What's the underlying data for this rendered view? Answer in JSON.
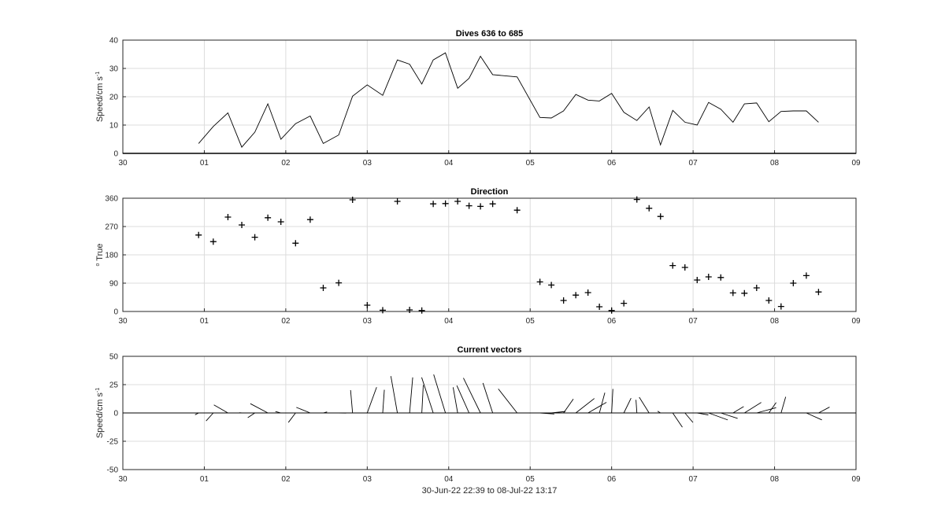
{
  "chart_data": [
    {
      "type": "line",
      "title": "Dives 636 to 685",
      "ylabel_main": "Speed/cm s",
      "ylabel_sup": "-1",
      "xlim": [
        0,
        9
      ],
      "ylim": [
        0,
        40
      ],
      "xticks": [
        0,
        1,
        2,
        3,
        4,
        5,
        6,
        7,
        8,
        9
      ],
      "xticklabels": [
        "30",
        "01",
        "02",
        "03",
        "04",
        "05",
        "06",
        "07",
        "08",
        "09"
      ],
      "yticks": [
        0,
        10,
        20,
        30,
        40
      ],
      "yticklabels": [
        "0",
        "10",
        "20",
        "30",
        "40"
      ],
      "grid": true,
      "x": [
        0.93,
        1.11,
        1.29,
        1.46,
        1.62,
        1.78,
        1.94,
        2.12,
        2.3,
        2.46,
        2.65,
        2.82,
        3.0,
        3.19,
        3.37,
        3.52,
        3.67,
        3.81,
        3.96,
        4.11,
        4.25,
        4.39,
        4.54,
        4.84,
        5.12,
        5.26,
        5.41,
        5.56,
        5.71,
        5.85,
        6.0,
        6.15,
        6.31,
        6.46,
        6.6,
        6.75,
        6.9,
        7.05,
        7.19,
        7.34,
        7.49,
        7.63,
        7.78,
        7.93,
        8.08,
        8.23,
        8.39,
        8.54
      ],
      "y": [
        3.5,
        9.5,
        14.3,
        2.2,
        7.5,
        17.5,
        5.0,
        10.5,
        13.2,
        3.5,
        6.5,
        20.2,
        24.2,
        20.5,
        33.0,
        31.5,
        24.5,
        33.0,
        35.5,
        23.0,
        26.5,
        34.3,
        27.8,
        27.0,
        12.7,
        12.5,
        15.0,
        20.8,
        18.8,
        18.5,
        21.2,
        14.5,
        11.6,
        16.4,
        3.0,
        15.2,
        11.0,
        10.0,
        18.0,
        15.6,
        11.0,
        17.5,
        17.8,
        11.2,
        14.8,
        15.0,
        15.0,
        11.0
      ]
    },
    {
      "type": "scatter",
      "title": "Direction",
      "ylabel_main": " True",
      "ylabel_sup": "o",
      "xlim": [
        0,
        9
      ],
      "ylim": [
        0,
        360
      ],
      "xticks": [
        0,
        1,
        2,
        3,
        4,
        5,
        6,
        7,
        8,
        9
      ],
      "xticklabels": [
        "30",
        "01",
        "02",
        "03",
        "04",
        "05",
        "06",
        "07",
        "08",
        "09"
      ],
      "yticks": [
        0,
        90,
        180,
        270,
        360
      ],
      "yticklabels": [
        "0",
        "90",
        "180",
        "270",
        "360"
      ],
      "grid": true,
      "marker": "+",
      "x": [
        0.93,
        1.11,
        1.29,
        1.46,
        1.62,
        1.78,
        1.94,
        2.12,
        2.3,
        2.46,
        2.65,
        2.82,
        3.0,
        3.19,
        3.37,
        3.52,
        3.67,
        3.81,
        3.96,
        4.11,
        4.25,
        4.39,
        4.54,
        4.84,
        5.12,
        5.26,
        5.41,
        5.56,
        5.71,
        5.85,
        6.0,
        6.15,
        6.31,
        6.46,
        6.6,
        6.75,
        6.9,
        7.05,
        7.19,
        7.34,
        7.49,
        7.63,
        7.78,
        7.93,
        8.08,
        8.23,
        8.39,
        8.54
      ],
      "y": [
        243,
        222,
        300,
        275,
        236,
        298,
        285,
        217,
        292,
        75,
        91,
        355,
        20,
        4,
        350,
        5,
        3,
        342,
        343,
        350,
        336,
        334,
        342,
        322,
        94,
        84,
        35,
        52,
        60,
        15,
        3,
        26,
        356,
        328,
        302,
        146,
        140,
        100,
        110,
        108,
        59,
        58,
        75,
        35,
        16,
        90,
        114,
        62
      ]
    },
    {
      "type": "quiver",
      "title": "Current vectors",
      "ylabel_main": "Speed/cm s",
      "ylabel_sup": "-1",
      "xlabel": "30-Jun-22 22:39 to 08-Jul-22 13:17",
      "xlim": [
        0,
        9
      ],
      "ylim": [
        -50,
        50
      ],
      "xticks": [
        0,
        1,
        2,
        3,
        4,
        5,
        6,
        7,
        8,
        9
      ],
      "xticklabels": [
        "30",
        "01",
        "02",
        "03",
        "04",
        "05",
        "06",
        "07",
        "08",
        "09"
      ],
      "yticks": [
        -50,
        -25,
        0,
        25,
        50
      ],
      "yticklabels": [
        "-50",
        "-25",
        "0",
        "25",
        "50"
      ],
      "grid": true,
      "x": [
        0.93,
        1.11,
        1.29,
        1.46,
        1.62,
        1.78,
        1.94,
        2.12,
        2.3,
        2.46,
        2.65,
        2.82,
        3.0,
        3.19,
        3.37,
        3.52,
        3.67,
        3.81,
        3.96,
        4.11,
        4.25,
        4.39,
        4.54,
        4.84,
        5.12,
        5.26,
        5.41,
        5.56,
        5.71,
        5.85,
        6.0,
        6.15,
        6.31,
        6.46,
        6.6,
        6.75,
        6.9,
        7.05,
        7.19,
        7.34,
        7.49,
        7.63,
        7.78,
        7.93,
        8.08,
        8.23,
        8.39,
        8.54
      ],
      "speed": [
        3.5,
        9.5,
        14.3,
        2.2,
        7.5,
        17.5,
        5.0,
        10.5,
        13.2,
        3.5,
        6.5,
        20.2,
        24.2,
        20.5,
        33.0,
        31.5,
        24.5,
        33.0,
        35.5,
        23.0,
        26.5,
        34.3,
        27.8,
        27.0,
        12.7,
        12.5,
        15.0,
        20.8,
        18.8,
        18.5,
        21.2,
        14.5,
        11.6,
        16.4,
        3.0,
        15.2,
        11.0,
        10.0,
        18.0,
        15.6,
        11.0,
        17.5,
        17.8,
        11.2,
        14.8,
        15.0,
        15.0,
        11.0
      ],
      "direction": [
        243,
        222,
        300,
        275,
        236,
        298,
        285,
        217,
        292,
        75,
        91,
        355,
        20,
        4,
        350,
        5,
        3,
        342,
        343,
        350,
        336,
        334,
        342,
        322,
        94,
        84,
        35,
        52,
        60,
        15,
        3,
        26,
        356,
        328,
        302,
        146,
        140,
        100,
        110,
        108,
        59,
        58,
        75,
        35,
        16,
        90,
        114,
        62
      ]
    }
  ]
}
